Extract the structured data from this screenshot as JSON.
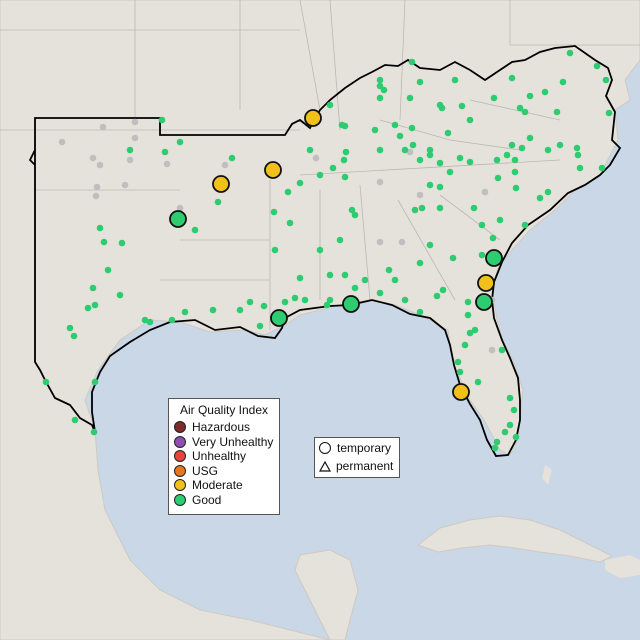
{
  "legend": {
    "title": "Air Quality Index",
    "categories": [
      {
        "label": "Hazardous",
        "color": "#7e2b2b"
      },
      {
        "label": "Very Unhealthy",
        "color": "#8f4fb0"
      },
      {
        "label": "Unhealthy",
        "color": "#e8443a"
      },
      {
        "label": "USG",
        "color": "#e8761c"
      },
      {
        "label": "Moderate",
        "color": "#f2c01a"
      },
      {
        "label": "Good",
        "color": "#2ecc71"
      }
    ],
    "types": [
      {
        "label": "temporary",
        "shape": "circle"
      },
      {
        "label": "permanent",
        "shape": "triangle"
      }
    ]
  },
  "colors": {
    "water": "#c9d7e6",
    "land": "#e5e2dc",
    "land_outside": "#dcd9d3",
    "boundary": "#000000",
    "inactive_station": "#bfbfbf"
  }
}
